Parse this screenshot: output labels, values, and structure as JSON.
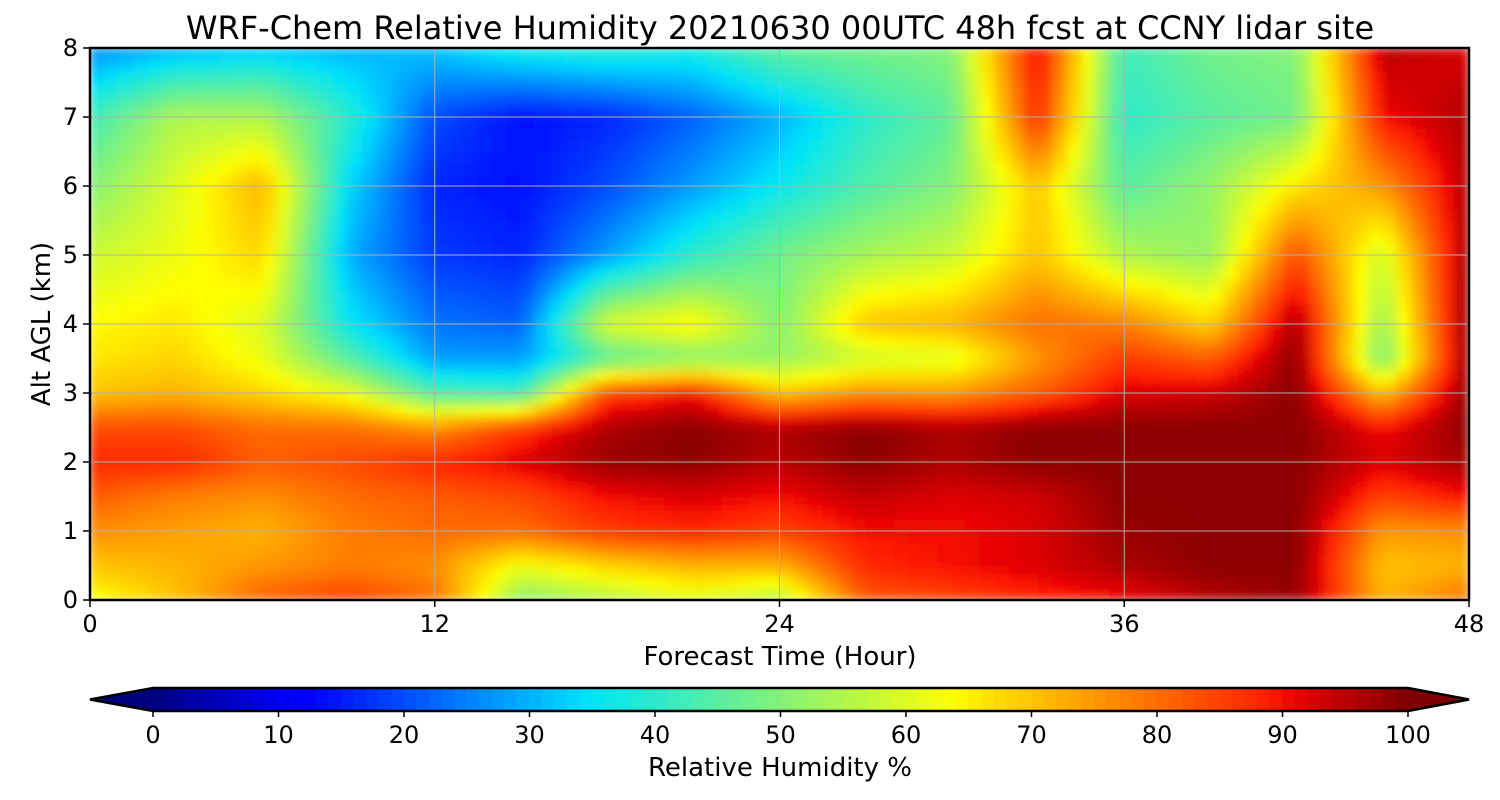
{
  "chart_data": {
    "type": "heatmap",
    "title": "WRF-Chem Relative Humidity 20210630 00UTC 48h fcst at CCNY lidar site",
    "xlabel": "Forecast Time (Hour)",
    "ylabel": "Alt AGL (km)",
    "xlim": [
      0,
      48
    ],
    "ylim": [
      0,
      8
    ],
    "xticks": [
      0,
      12,
      24,
      36,
      48
    ],
    "yticks": [
      0,
      1,
      2,
      3,
      4,
      5,
      6,
      7,
      8
    ],
    "grid": true,
    "colormap": "jet",
    "colorbar": {
      "label": "Relative Humidity %",
      "range": [
        0,
        100
      ],
      "ticks": [
        0,
        10,
        20,
        30,
        40,
        50,
        60,
        70,
        80,
        90,
        100
      ],
      "extend": "both",
      "orientation": "horizontal"
    },
    "x": [
      0,
      3,
      6,
      9,
      12,
      15,
      18,
      21,
      24,
      27,
      30,
      33,
      36,
      39,
      42,
      45,
      48
    ],
    "y": [
      0,
      0.5,
      1,
      1.5,
      2,
      2.5,
      3,
      3.5,
      4,
      5,
      6,
      7,
      8
    ],
    "z": [
      [
        62,
        70,
        82,
        86,
        80,
        50,
        55,
        60,
        55,
        82,
        85,
        88,
        90,
        95,
        98,
        72,
        80
      ],
      [
        70,
        72,
        75,
        78,
        76,
        62,
        68,
        72,
        72,
        88,
        90,
        92,
        96,
        99,
        99,
        70,
        72
      ],
      [
        76,
        74,
        72,
        78,
        80,
        80,
        86,
        88,
        85,
        90,
        90,
        92,
        98,
        99,
        99,
        75,
        76
      ],
      [
        82,
        78,
        76,
        80,
        82,
        84,
        90,
        92,
        90,
        94,
        92,
        93,
        99,
        99,
        99,
        85,
        90
      ],
      [
        88,
        88,
        82,
        84,
        88,
        92,
        98,
        99,
        95,
        99,
        96,
        99,
        99,
        99,
        99,
        92,
        97
      ],
      [
        84,
        84,
        80,
        80,
        76,
        86,
        96,
        99,
        96,
        99,
        96,
        99,
        99,
        99,
        99,
        90,
        99
      ],
      [
        70,
        72,
        68,
        62,
        44,
        42,
        85,
        90,
        70,
        76,
        75,
        82,
        92,
        93,
        99,
        70,
        99
      ],
      [
        66,
        68,
        62,
        45,
        28,
        28,
        45,
        50,
        52,
        58,
        60,
        75,
        86,
        82,
        99,
        48,
        99
      ],
      [
        64,
        66,
        60,
        36,
        24,
        22,
        60,
        65,
        50,
        70,
        72,
        80,
        78,
        68,
        97,
        52,
        99
      ],
      [
        58,
        62,
        68,
        30,
        18,
        16,
        28,
        40,
        48,
        54,
        58,
        70,
        55,
        52,
        84,
        58,
        98
      ],
      [
        50,
        60,
        72,
        34,
        16,
        14,
        20,
        28,
        36,
        44,
        50,
        70,
        45,
        52,
        66,
        75,
        96
      ],
      [
        42,
        55,
        55,
        40,
        20,
        14,
        16,
        22,
        30,
        40,
        46,
        88,
        40,
        45,
        48,
        90,
        96
      ],
      [
        26,
        30,
        32,
        30,
        32,
        38,
        40,
        38,
        46,
        48,
        50,
        92,
        42,
        48,
        50,
        95,
        92
      ]
    ]
  }
}
